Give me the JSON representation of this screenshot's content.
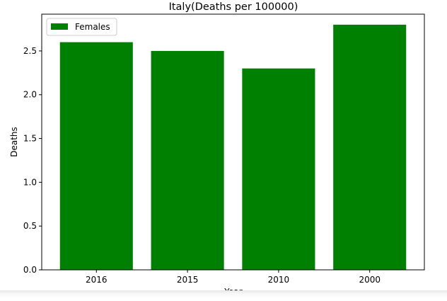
{
  "chart_data": {
    "type": "bar",
    "title": "Italy(Deaths per 100000)",
    "xlabel": "Year",
    "ylabel": "Deaths",
    "categories": [
      "2016",
      "2015",
      "2010",
      "2000"
    ],
    "series": [
      {
        "name": "Females",
        "values": [
          2.6,
          2.5,
          2.3,
          2.8
        ],
        "color": "#008000"
      }
    ],
    "ylim": [
      0,
      2.92
    ],
    "yticks": [
      "0.0",
      "0.5",
      "1.0",
      "1.5",
      "2.0",
      "2.5"
    ],
    "legend_position": "top-left",
    "grid": false
  }
}
